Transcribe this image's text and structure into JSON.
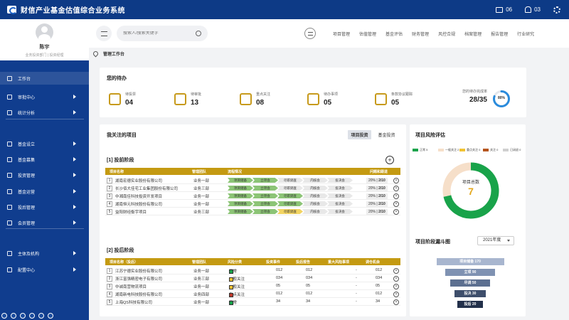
{
  "app": {
    "title": "财信产业基金估值综合业务系统",
    "messages": "06",
    "alerts": "03"
  },
  "user": {
    "name": "陈宇",
    "role": "业务投资部门 | 投资经理"
  },
  "nav": {
    "items": [
      {
        "label": "工作台",
        "icon": "monitor-icon"
      },
      {
        "label": "审批中心",
        "icon": "approval-icon"
      },
      {
        "label": "统计分析",
        "icon": "stats-icon"
      },
      {
        "label": "基金设立",
        "icon": "fund-setup-icon"
      },
      {
        "label": "基金募集",
        "icon": "fund-raise-icon"
      },
      {
        "label": "投资管理",
        "icon": "invest-icon"
      },
      {
        "label": "基金运营",
        "icon": "operation-icon"
      },
      {
        "label": "投后管理",
        "icon": "post-invest-icon"
      },
      {
        "label": "会员管理",
        "icon": "member-icon"
      },
      {
        "label": "主体及机构",
        "icon": "org-icon"
      },
      {
        "label": "配置中心",
        "icon": "config-icon"
      }
    ]
  },
  "search": {
    "placeholder": "搜索人/搜索关键字"
  },
  "topnav": [
    "项目管理",
    "估值管理",
    "基金评估",
    "财务管理",
    "风控合规",
    "档案管理",
    "报告管理",
    "行业研究"
  ],
  "breadcrumb": "管理工作台",
  "todo": {
    "title": "您的待办",
    "items": [
      {
        "label": "待投票",
        "value": "04"
      },
      {
        "label": "待审批",
        "value": "13"
      },
      {
        "label": "重点关注",
        "value": "08"
      },
      {
        "label": "待办事项",
        "value": "05"
      },
      {
        "label": "条款协议跟踪",
        "value": "05"
      },
      {
        "label": "您的待办完成率",
        "value": "28/35",
        "percent": "80%"
      }
    ]
  },
  "projects": {
    "title": "我关注的项目",
    "tabs": [
      "项目投资",
      "基金投资"
    ],
    "pre": {
      "title": "[1] 投前阶段",
      "headers": [
        "项目名称",
        "管理团队",
        "流程情况",
        "问题和跟进"
      ],
      "stages": [
        "项目储备",
        "立项会",
        "尽职调查",
        "内核会",
        "投决会"
      ],
      "rows": [
        {
          "n": "1",
          "name": "湖南宏德实业股份有限公司",
          "team": "业务一部",
          "pct": "20%",
          "step": "2/10",
          "progress": 2
        },
        {
          "n": "2",
          "name": "长沙佰大佳宅工业集团股份有限公司",
          "team": "业务三部",
          "pct": "20%",
          "step": "2/10",
          "progress": 2
        },
        {
          "n": "3",
          "name": "中湘南佳科技投资开发项目",
          "team": "业务一部",
          "pct": "20%",
          "step": "2/10",
          "progress": 3
        },
        {
          "n": "4",
          "name": "湖南恒元科技股份有限公司",
          "team": "业务一部",
          "pct": "20%",
          "step": "2/10",
          "progress": 3
        },
        {
          "n": "5",
          "name": "益阳财经衡宇项目",
          "team": "业务三部",
          "pct": "20%",
          "step": "2/10",
          "progress": 2.5
        }
      ]
    },
    "post": {
      "title": "[2] 投后阶段",
      "headers": [
        "项目名称（投后）",
        "管理团队",
        "风险分类",
        "投资事件",
        "投后报告",
        "重大风险事项",
        "调仓机会"
      ],
      "rows": [
        {
          "n": "1",
          "name": "江苏宁德实业股份有限公司",
          "team": "业务一部",
          "risk": "正常",
          "riskColor": "#17a34a",
          "inv": "012",
          "rep": "012",
          "major": "-",
          "adj": "012"
        },
        {
          "n": "2",
          "name": "浙江富强精密电子有限公司",
          "team": "业务三部",
          "risk": "一般关注",
          "riskColor": "#f1c232",
          "inv": "034",
          "rep": "034",
          "major": "-",
          "adj": "034"
        },
        {
          "n": "3",
          "name": "中诚南营物流项目",
          "team": "业务一部",
          "risk": "一般关注",
          "riskColor": "#f1c232",
          "inv": "05",
          "rep": "05",
          "major": "-",
          "adj": "05"
        },
        {
          "n": "4",
          "name": "湖南新电科技股份有限公司",
          "team": "业务四部",
          "risk": "重点关注",
          "riskColor": "#c0392b",
          "inv": "012",
          "rep": "012",
          "major": "-",
          "adj": "012"
        },
        {
          "n": "5",
          "name": "上海QS科技有限公司",
          "team": "业务一部",
          "risk": "正常",
          "riskColor": "#17a34a",
          "inv": "34",
          "rep": "34",
          "major": "-",
          "adj": "34"
        }
      ]
    }
  },
  "risk": {
    "title": "项目风险评估",
    "center_label": "项目总数",
    "total": "7",
    "legend": [
      {
        "label": "正常 5",
        "color": "#19a34a",
        "value": 5
      },
      {
        "label": "一般关注 2",
        "color": "#f6dfc9",
        "value": 2
      },
      {
        "label": "重点关注 0",
        "color": "#f1c232",
        "value": 0
      },
      {
        "label": "关注 0",
        "color": "#b5541c",
        "value": 0
      },
      {
        "label": "已闭退 0",
        "color": "#cfcfcf",
        "value": 0
      }
    ]
  },
  "funnel": {
    "title": "项目阶段漏斗图",
    "year": "2021年度",
    "stages": [
      {
        "label": "项目储备 170",
        "color": "#a8b6cf"
      },
      {
        "label": "立项 90",
        "color": "#7f92b2"
      },
      {
        "label": "尽调 50",
        "color": "#5c6f90"
      },
      {
        "label": "投决 30",
        "color": "#3e4e6b"
      },
      {
        "label": "投后 20",
        "color": "#22304a"
      }
    ]
  }
}
